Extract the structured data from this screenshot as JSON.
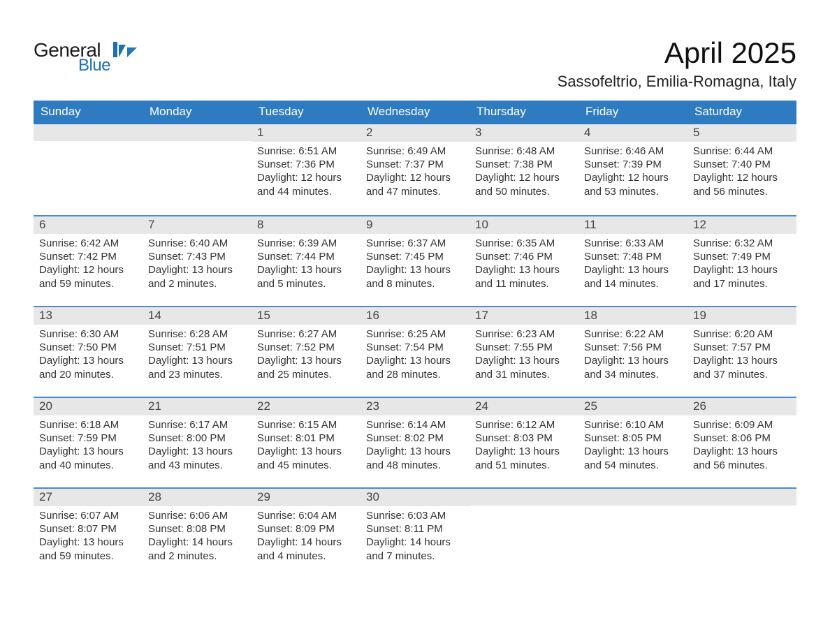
{
  "logo": {
    "line1": "General",
    "line2": "Blue",
    "flag_color": "#1a6fb5"
  },
  "title": "April 2025",
  "subtitle": "Sassofeltrio, Emilia-Romagna, Italy",
  "weekdays": [
    "Sunday",
    "Monday",
    "Tuesday",
    "Wednesday",
    "Thursday",
    "Friday",
    "Saturday"
  ],
  "calendar": {
    "colors": {
      "header_bg": "#2f7bc2",
      "daynum_bg": "#e7e7e7",
      "week_separator": "#4a8cc9",
      "text": "#222222",
      "background": "#ffffff"
    },
    "weeks": [
      [
        null,
        null,
        {
          "n": "1",
          "sunrise": "6:51 AM",
          "sunset": "7:36 PM",
          "daylight": "12 hours and 44 minutes."
        },
        {
          "n": "2",
          "sunrise": "6:49 AM",
          "sunset": "7:37 PM",
          "daylight": "12 hours and 47 minutes."
        },
        {
          "n": "3",
          "sunrise": "6:48 AM",
          "sunset": "7:38 PM",
          "daylight": "12 hours and 50 minutes."
        },
        {
          "n": "4",
          "sunrise": "6:46 AM",
          "sunset": "7:39 PM",
          "daylight": "12 hours and 53 minutes."
        },
        {
          "n": "5",
          "sunrise": "6:44 AM",
          "sunset": "7:40 PM",
          "daylight": "12 hours and 56 minutes."
        }
      ],
      [
        {
          "n": "6",
          "sunrise": "6:42 AM",
          "sunset": "7:42 PM",
          "daylight": "12 hours and 59 minutes."
        },
        {
          "n": "7",
          "sunrise": "6:40 AM",
          "sunset": "7:43 PM",
          "daylight": "13 hours and 2 minutes."
        },
        {
          "n": "8",
          "sunrise": "6:39 AM",
          "sunset": "7:44 PM",
          "daylight": "13 hours and 5 minutes."
        },
        {
          "n": "9",
          "sunrise": "6:37 AM",
          "sunset": "7:45 PM",
          "daylight": "13 hours and 8 minutes."
        },
        {
          "n": "10",
          "sunrise": "6:35 AM",
          "sunset": "7:46 PM",
          "daylight": "13 hours and 11 minutes."
        },
        {
          "n": "11",
          "sunrise": "6:33 AM",
          "sunset": "7:48 PM",
          "daylight": "13 hours and 14 minutes."
        },
        {
          "n": "12",
          "sunrise": "6:32 AM",
          "sunset": "7:49 PM",
          "daylight": "13 hours and 17 minutes."
        }
      ],
      [
        {
          "n": "13",
          "sunrise": "6:30 AM",
          "sunset": "7:50 PM",
          "daylight": "13 hours and 20 minutes."
        },
        {
          "n": "14",
          "sunrise": "6:28 AM",
          "sunset": "7:51 PM",
          "daylight": "13 hours and 23 minutes."
        },
        {
          "n": "15",
          "sunrise": "6:27 AM",
          "sunset": "7:52 PM",
          "daylight": "13 hours and 25 minutes."
        },
        {
          "n": "16",
          "sunrise": "6:25 AM",
          "sunset": "7:54 PM",
          "daylight": "13 hours and 28 minutes."
        },
        {
          "n": "17",
          "sunrise": "6:23 AM",
          "sunset": "7:55 PM",
          "daylight": "13 hours and 31 minutes."
        },
        {
          "n": "18",
          "sunrise": "6:22 AM",
          "sunset": "7:56 PM",
          "daylight": "13 hours and 34 minutes."
        },
        {
          "n": "19",
          "sunrise": "6:20 AM",
          "sunset": "7:57 PM",
          "daylight": "13 hours and 37 minutes."
        }
      ],
      [
        {
          "n": "20",
          "sunrise": "6:18 AM",
          "sunset": "7:59 PM",
          "daylight": "13 hours and 40 minutes."
        },
        {
          "n": "21",
          "sunrise": "6:17 AM",
          "sunset": "8:00 PM",
          "daylight": "13 hours and 43 minutes."
        },
        {
          "n": "22",
          "sunrise": "6:15 AM",
          "sunset": "8:01 PM",
          "daylight": "13 hours and 45 minutes."
        },
        {
          "n": "23",
          "sunrise": "6:14 AM",
          "sunset": "8:02 PM",
          "daylight": "13 hours and 48 minutes."
        },
        {
          "n": "24",
          "sunrise": "6:12 AM",
          "sunset": "8:03 PM",
          "daylight": "13 hours and 51 minutes."
        },
        {
          "n": "25",
          "sunrise": "6:10 AM",
          "sunset": "8:05 PM",
          "daylight": "13 hours and 54 minutes."
        },
        {
          "n": "26",
          "sunrise": "6:09 AM",
          "sunset": "8:06 PM",
          "daylight": "13 hours and 56 minutes."
        }
      ],
      [
        {
          "n": "27",
          "sunrise": "6:07 AM",
          "sunset": "8:07 PM",
          "daylight": "13 hours and 59 minutes."
        },
        {
          "n": "28",
          "sunrise": "6:06 AM",
          "sunset": "8:08 PM",
          "daylight": "14 hours and 2 minutes."
        },
        {
          "n": "29",
          "sunrise": "6:04 AM",
          "sunset": "8:09 PM",
          "daylight": "14 hours and 4 minutes."
        },
        {
          "n": "30",
          "sunrise": "6:03 AM",
          "sunset": "8:11 PM",
          "daylight": "14 hours and 7 minutes."
        },
        null,
        null,
        null
      ]
    ]
  },
  "labels": {
    "sunrise": "Sunrise: ",
    "sunset": "Sunset: ",
    "daylight": "Daylight: "
  }
}
